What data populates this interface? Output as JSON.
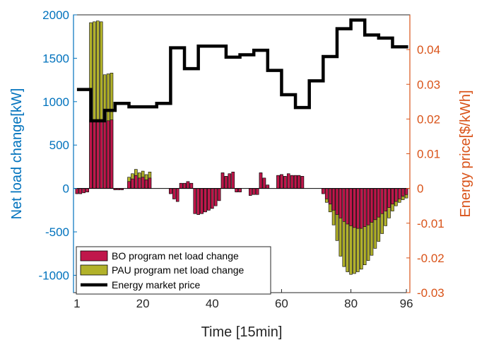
{
  "chart_data": {
    "type": "bar",
    "title": "",
    "xlabel": "Time [15min]",
    "ylabel_left": "Net  load  change[kW]",
    "ylabel_right": "Energy price[$/kWh]",
    "xlim": [
      0,
      97
    ],
    "ylim_left": [
      -1200,
      2000
    ],
    "ylim_right": [
      -0.03,
      0.05
    ],
    "x_ticks": [
      1,
      20,
      40,
      60,
      80,
      96
    ],
    "y_left_ticks": [
      -1000,
      -500,
      0,
      500,
      1000,
      1500,
      2000
    ],
    "y_right_ticks": [
      -0.03,
      -0.02,
      -0.01,
      0,
      0.01,
      0.02,
      0.03,
      0.04
    ],
    "y_right_tick_labels": [
      "-0.03",
      "-0.02",
      "-0.01",
      "0",
      "0.01",
      "0.02",
      "0.03",
      "0.04"
    ],
    "colors": {
      "bo": "#C0174B",
      "pau": "#B2B22A",
      "price": "#000000",
      "left_axis": "#0072BD",
      "right_axis": "#D95319"
    },
    "legend_position": "bottom-left",
    "series": [
      {
        "name": "BO program net load change",
        "kind": "bar",
        "x": [
          1,
          2,
          3,
          4,
          5,
          6,
          7,
          8,
          9,
          10,
          11,
          12,
          13,
          14,
          15,
          16,
          17,
          18,
          19,
          20,
          21,
          22,
          23,
          24,
          25,
          26,
          27,
          28,
          29,
          30,
          31,
          32,
          33,
          34,
          35,
          36,
          37,
          38,
          39,
          40,
          41,
          42,
          43,
          44,
          45,
          46,
          47,
          48,
          49,
          50,
          51,
          52,
          53,
          54,
          55,
          56,
          57,
          58,
          59,
          60,
          61,
          62,
          63,
          64,
          65,
          66,
          67,
          68,
          69,
          70,
          71,
          72,
          73,
          74,
          75,
          76,
          77,
          78,
          79,
          80,
          81,
          82,
          83,
          84,
          85,
          86,
          87,
          88,
          89,
          90,
          91,
          92,
          93,
          94,
          95,
          96
        ],
        "values": [
          -60,
          -60,
          -50,
          -40,
          790,
          790,
          790,
          780,
          780,
          780,
          790,
          -15,
          -15,
          -15,
          0,
          80,
          110,
          150,
          120,
          130,
          100,
          120,
          0,
          0,
          0,
          0,
          0,
          -60,
          -120,
          -150,
          60,
          60,
          80,
          60,
          -290,
          -300,
          -290,
          -270,
          -250,
          -230,
          -200,
          -140,
          180,
          140,
          170,
          190,
          -40,
          -40,
          0,
          0,
          -80,
          -70,
          -70,
          180,
          120,
          40,
          0,
          0,
          150,
          160,
          140,
          170,
          150,
          150,
          150,
          140,
          0,
          0,
          0,
          0,
          0,
          -60,
          -120,
          -180,
          -250,
          -300,
          -340,
          -380,
          -410,
          -430,
          -450,
          -460,
          -460,
          -440,
          -420,
          -390,
          -360,
          -330,
          -290,
          -260,
          -220,
          -180,
          -150,
          -120,
          -90,
          -70
        ]
      },
      {
        "name": "PAU program net load change",
        "kind": "bar",
        "x": [
          1,
          2,
          3,
          4,
          5,
          6,
          7,
          8,
          9,
          10,
          11,
          12,
          13,
          14,
          15,
          16,
          17,
          18,
          19,
          20,
          21,
          22,
          23,
          24,
          25,
          26,
          27,
          28,
          29,
          30,
          31,
          32,
          33,
          34,
          35,
          36,
          37,
          38,
          39,
          40,
          41,
          42,
          43,
          44,
          45,
          46,
          47,
          48,
          49,
          50,
          51,
          52,
          53,
          54,
          55,
          56,
          57,
          58,
          59,
          60,
          61,
          62,
          63,
          64,
          65,
          66,
          67,
          68,
          69,
          70,
          71,
          72,
          73,
          74,
          75,
          76,
          77,
          78,
          79,
          80,
          81,
          82,
          83,
          84,
          85,
          86,
          87,
          88,
          89,
          90,
          91,
          92,
          93,
          94,
          95,
          96
        ],
        "values": [
          -60,
          -60,
          -50,
          -40,
          1910,
          1920,
          1930,
          1920,
          1310,
          1320,
          1330,
          -15,
          -15,
          -15,
          0,
          130,
          170,
          220,
          180,
          200,
          160,
          190,
          0,
          0,
          0,
          0,
          0,
          -60,
          -120,
          -150,
          60,
          60,
          80,
          60,
          -290,
          -300,
          -290,
          -270,
          -250,
          -230,
          -200,
          -140,
          180,
          140,
          170,
          190,
          -40,
          -40,
          0,
          0,
          -80,
          -70,
          -70,
          180,
          120,
          40,
          0,
          0,
          150,
          160,
          140,
          170,
          150,
          150,
          150,
          140,
          0,
          0,
          0,
          0,
          0,
          -60,
          -160,
          -270,
          -420,
          -600,
          -780,
          -900,
          -960,
          -990,
          -980,
          -960,
          -930,
          -880,
          -830,
          -770,
          -690,
          -610,
          -520,
          -430,
          -340,
          -260,
          -200,
          -160,
          -130,
          -110
        ]
      },
      {
        "name": "Energy market price",
        "kind": "line",
        "step": true,
        "x": [
          1,
          2,
          3,
          4,
          5,
          6,
          7,
          8,
          9,
          10,
          11,
          12,
          13,
          14,
          15,
          16,
          17,
          18,
          19,
          20,
          21,
          22,
          23,
          24,
          25,
          26,
          27,
          28,
          29,
          30,
          31,
          32,
          33,
          34,
          35,
          36,
          37,
          38,
          39,
          40,
          41,
          42,
          43,
          44,
          45,
          46,
          47,
          48,
          49,
          50,
          51,
          52,
          53,
          54,
          55,
          56,
          57,
          58,
          59,
          60,
          61,
          62,
          63,
          64,
          65,
          66,
          67,
          68,
          69,
          70,
          71,
          72,
          73,
          74,
          75,
          76,
          77,
          78,
          79,
          80,
          81,
          82,
          83,
          84,
          85,
          86,
          87,
          88,
          89,
          90,
          91,
          92,
          93,
          94,
          95,
          96
        ],
        "values": [
          0.0285,
          0.0285,
          0.0285,
          0.0285,
          0.0195,
          0.0195,
          0.0195,
          0.0195,
          0.0225,
          0.0225,
          0.0225,
          0.0245,
          0.0245,
          0.0245,
          0.0245,
          0.0235,
          0.0235,
          0.0235,
          0.0235,
          0.0235,
          0.0235,
          0.0235,
          0.0235,
          0.0245,
          0.0245,
          0.0245,
          0.0245,
          0.0405,
          0.0405,
          0.0405,
          0.0405,
          0.0345,
          0.0345,
          0.0345,
          0.0345,
          0.041,
          0.041,
          0.041,
          0.041,
          0.041,
          0.041,
          0.041,
          0.041,
          0.0378,
          0.0378,
          0.0378,
          0.0378,
          0.0385,
          0.0385,
          0.0385,
          0.0385,
          0.0398,
          0.0398,
          0.0398,
          0.0398,
          0.034,
          0.034,
          0.034,
          0.034,
          0.027,
          0.027,
          0.027,
          0.027,
          0.0233,
          0.0233,
          0.0233,
          0.0233,
          0.031,
          0.031,
          0.031,
          0.031,
          0.038,
          0.038,
          0.038,
          0.038,
          0.046,
          0.046,
          0.046,
          0.046,
          0.0485,
          0.0485,
          0.0485,
          0.0485,
          0.0442,
          0.0442,
          0.0442,
          0.0442,
          0.0433,
          0.0433,
          0.0433,
          0.0433,
          0.0408,
          0.0408,
          0.0408,
          0.0408,
          0.0408
        ]
      }
    ]
  }
}
